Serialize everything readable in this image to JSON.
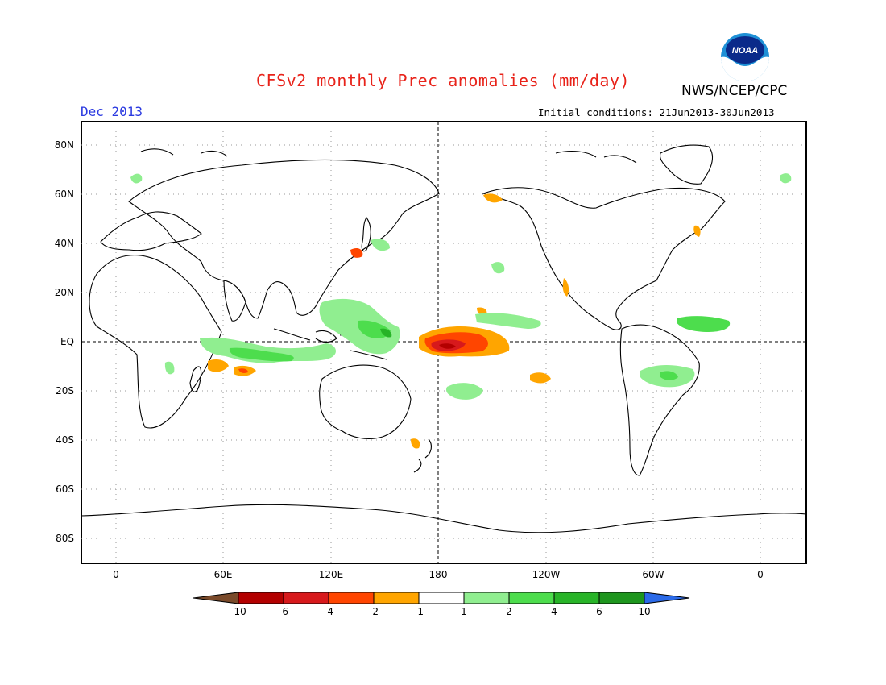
{
  "header": {
    "title": "CFSv2 monthly Prec anomalies (mm/day)",
    "organization": "NWS/NCEP/CPC",
    "logo_text": "NOAA",
    "valid_month": "Dec 2013",
    "initial_conditions": "Initial conditions: 21Jun2013-30Jun2013"
  },
  "map": {
    "lat_labels": [
      "80N",
      "60N",
      "40N",
      "20N",
      "EQ",
      "20S",
      "40S",
      "60S",
      "80S"
    ],
    "lon_labels": [
      "0",
      "60E",
      "120E",
      "180",
      "120W",
      "60W",
      "0"
    ],
    "grid": "dotted",
    "reference_lines": [
      "EQ",
      "180"
    ]
  },
  "colorbar": {
    "colors": [
      "#7a4a2a",
      "#b30000",
      "#d7191c",
      "#ff4500",
      "#ffa500",
      "#ffffff",
      "#90ee90",
      "#4ddd4d",
      "#28b428",
      "#1e961e",
      "#2b6ae8"
    ],
    "labels": [
      "-10",
      "-6",
      "-4",
      "-2",
      "-1",
      "1",
      "2",
      "4",
      "6",
      "10"
    ]
  }
}
